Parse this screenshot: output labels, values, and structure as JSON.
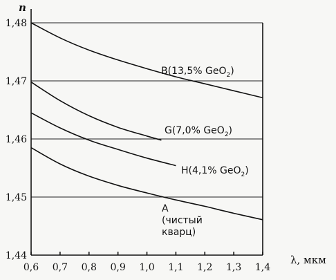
{
  "chart_data": {
    "type": "line",
    "ylabel": "n",
    "xlabel": "λ, мкм",
    "xlim": [
      0.6,
      1.4
    ],
    "ylim": [
      1.44,
      1.48
    ],
    "x_ticks": [
      "0,6",
      "0,7",
      "0,8",
      "0,9",
      "1,0",
      "1,1",
      "1,2",
      "1,3",
      "1,4"
    ],
    "y_ticks": [
      "1,44",
      "1,45",
      "1,46",
      "1,47",
      "1,48"
    ],
    "grid": "horizontal",
    "series": [
      {
        "name": "B(13,5% GeO2)",
        "label_main": "B(13,5% GeO",
        "label_sub": "2",
        "label_end": ")",
        "x": [
          0.6,
          0.7,
          0.8,
          0.9,
          1.0,
          1.1,
          1.2,
          1.3,
          1.4
        ],
        "y": [
          1.48,
          1.4774,
          1.4753,
          1.4736,
          1.4721,
          1.4707,
          1.4695,
          1.4683,
          1.4671
        ]
      },
      {
        "name": "G(7,0% GeO2)",
        "label_main": "G(7,0% GeO",
        "label_sub": "2",
        "label_end": ")",
        "x": [
          0.6,
          0.7,
          0.8,
          0.9,
          1.0,
          1.05
        ],
        "y": [
          1.4698,
          1.4666,
          1.464,
          1.462,
          1.4605,
          1.4598
        ]
      },
      {
        "name": "H(4,1% GeO2)",
        "label_main": "H(4,1% GeO",
        "label_sub": "2",
        "label_end": ")",
        "x": [
          0.6,
          0.7,
          0.8,
          0.9,
          1.0,
          1.1
        ],
        "y": [
          1.4645,
          1.4619,
          1.4598,
          1.4582,
          1.4567,
          1.4554
        ]
      },
      {
        "name": "A (чистый кварц)",
        "label_lines": [
          "A",
          "(чистый",
          "кварц)"
        ],
        "x": [
          0.6,
          0.7,
          0.8,
          0.9,
          1.0,
          1.1,
          1.2,
          1.3,
          1.4
        ],
        "y": [
          1.4585,
          1.4557,
          1.4536,
          1.452,
          1.4507,
          1.4495,
          1.4484,
          1.4472,
          1.4461
        ]
      }
    ]
  }
}
